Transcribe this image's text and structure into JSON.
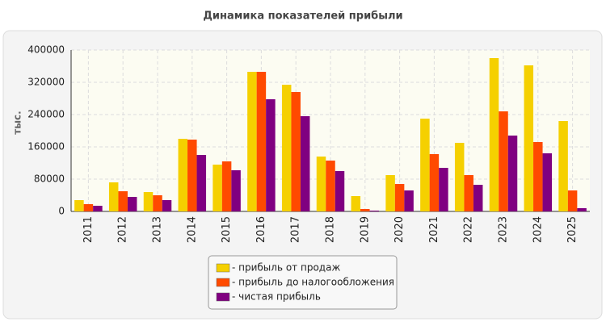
{
  "chart_data": {
    "type": "bar",
    "title": "Динамика показателей прибыли",
    "y_label": "тыс.",
    "categories": [
      "2011",
      "2012",
      "2013",
      "2014",
      "2015",
      "2016",
      "2017",
      "2018",
      "2019",
      "2020",
      "2021",
      "2022",
      "2023",
      "2024",
      "2025"
    ],
    "series": [
      {
        "name": "- прибыль от продаж",
        "color": "#f5d000",
        "values": [
          28000,
          72000,
          48000,
          180000,
          116000,
          346000,
          314000,
          136000,
          38000,
          90000,
          230000,
          170000,
          380000,
          362000,
          224000
        ]
      },
      {
        "name": "- прибыль до налогообложения",
        "color": "#ff4a00",
        "values": [
          18000,
          50000,
          40000,
          178000,
          124000,
          346000,
          296000,
          126000,
          6000,
          68000,
          142000,
          90000,
          248000,
          172000,
          52000
        ]
      },
      {
        "name": "- чистая прибыль",
        "color": "#800080",
        "values": [
          14000,
          36000,
          28000,
          140000,
          102000,
          278000,
          236000,
          100000,
          2000,
          52000,
          108000,
          66000,
          188000,
          144000,
          8000
        ]
      }
    ],
    "ylim": [
      0,
      400000
    ],
    "yticks": [
      0,
      80000,
      160000,
      240000,
      320000,
      400000
    ],
    "grid": true
  }
}
